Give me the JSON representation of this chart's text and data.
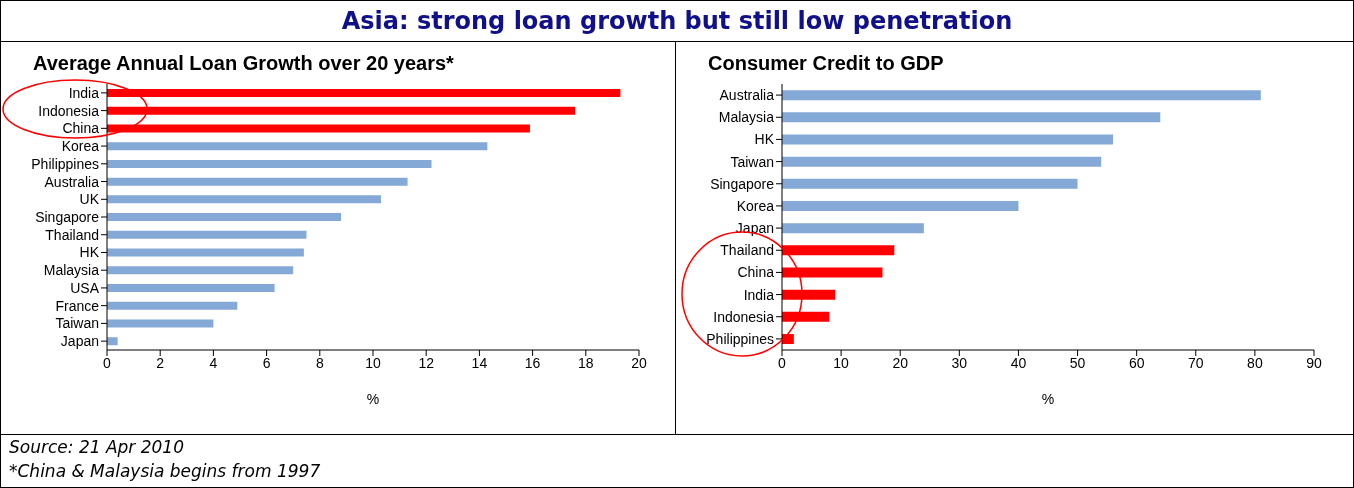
{
  "chart_data": [
    {
      "type": "other",
      "title": "Asia: strong loan growth but still low penetration",
      "annotations": [
        "Source: 21 Apr 2010",
        "*China & Malaysia begins from 1997"
      ]
    },
    {
      "type": "bar",
      "orientation": "horizontal",
      "title": "Average Annual Loan Growth over 20 years*",
      "xlabel": "%",
      "categories": [
        "India",
        "Indonesia",
        "China",
        "Korea",
        "Philippines",
        "Australia",
        "UK",
        "Singapore",
        "Thailand",
        "HK",
        "Malaysia",
        "USA",
        "France",
        "Taiwan",
        "Japan"
      ],
      "values": [
        19.3,
        17.6,
        15.9,
        14.3,
        12.2,
        11.3,
        10.3,
        8.8,
        7.5,
        7.4,
        7.0,
        6.3,
        4.9,
        4.0,
        0.4
      ],
      "colors": [
        "#ff0000",
        "#ff0000",
        "#ff0000",
        "#85a9d6",
        "#85a9d6",
        "#85a9d6",
        "#85a9d6",
        "#85a9d6",
        "#85a9d6",
        "#85a9d6",
        "#85a9d6",
        "#85a9d6",
        "#85a9d6",
        "#85a9d6",
        "#85a9d6"
      ],
      "xlim": [
        0,
        20
      ],
      "xticks": [
        0,
        2,
        4,
        6,
        8,
        10,
        12,
        14,
        16,
        18,
        20
      ],
      "grid": false,
      "legend": false
    },
    {
      "type": "bar",
      "orientation": "horizontal",
      "title": "Consumer Credit to GDP",
      "xlabel": "%",
      "categories": [
        "Australia",
        "Malaysia",
        "HK",
        "Taiwan",
        "Singapore",
        "Korea",
        "Japan",
        "Thailand",
        "China",
        "India",
        "Indonesia",
        "Philippines"
      ],
      "values": [
        81,
        64,
        56,
        54,
        50,
        40,
        24,
        19,
        17,
        9,
        8,
        2
      ],
      "colors": [
        "#85a9d6",
        "#85a9d6",
        "#85a9d6",
        "#85a9d6",
        "#85a9d6",
        "#85a9d6",
        "#85a9d6",
        "#ff0000",
        "#ff0000",
        "#ff0000",
        "#ff0000",
        "#ff0000"
      ],
      "xlim": [
        0,
        90
      ],
      "xticks": [
        0,
        10,
        20,
        30,
        40,
        50,
        60,
        70,
        80,
        90
      ],
      "grid": false,
      "legend": false
    }
  ]
}
